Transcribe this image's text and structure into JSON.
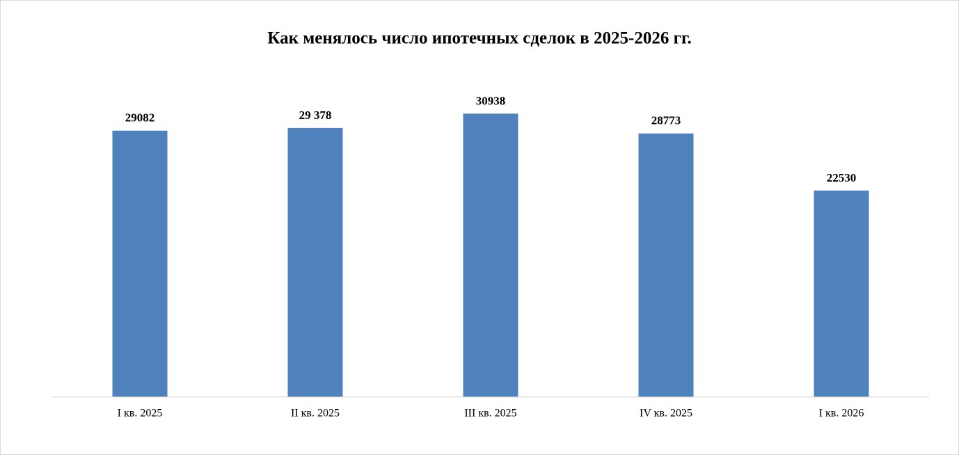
{
  "chart_data": {
    "type": "bar",
    "title": "Как менялось число ипотечных сделок в 2025-2026 гг.",
    "categories": [
      "I кв. 2025",
      "II кв. 2025",
      "III кв. 2025",
      "IV кв. 2025",
      "I кв. 2026"
    ],
    "values": [
      29082,
      29378,
      30938,
      28773,
      22530
    ],
    "value_labels": [
      "29082",
      "29 378",
      "30938",
      "28773",
      "22530"
    ],
    "color": "#4f81bd",
    "ylim": [
      0,
      35000
    ]
  }
}
